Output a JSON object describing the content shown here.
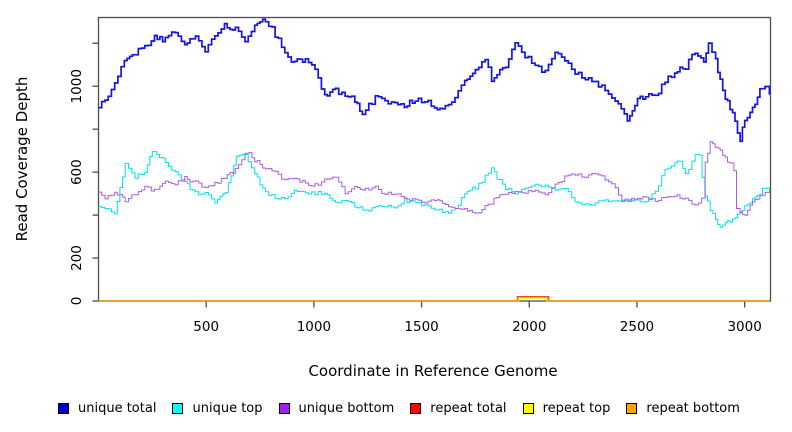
{
  "background": "#ffffff",
  "chart_data": {
    "type": "line",
    "title": "",
    "xlabel": "Coordinate in Reference Genome",
    "ylabel": "Read Coverage Depth",
    "xlim": [
      0,
      3120
    ],
    "ylim": [
      0,
      1320
    ],
    "x_ticks": [
      500,
      1000,
      1500,
      2000,
      2500,
      3000
    ],
    "y_ticks_all": [
      0,
      200,
      400,
      600,
      800,
      1000,
      1200
    ],
    "y_ticks_labeled": [
      0,
      200,
      600,
      1000
    ],
    "grid": false,
    "legend_position": "bottom",
    "axis_color": "#4d4d4d",
    "text_color": "#000000",
    "series": [
      {
        "name": "unique total",
        "color": "#1414e6",
        "legend_color": "#0000cd",
        "width": 1.7,
        "jitter": 13,
        "points": [
          [
            0,
            900
          ],
          [
            30,
            935
          ],
          [
            75,
            1005
          ],
          [
            120,
            1120
          ],
          [
            170,
            1155
          ],
          [
            215,
            1180
          ],
          [
            260,
            1225
          ],
          [
            310,
            1215
          ],
          [
            355,
            1260
          ],
          [
            400,
            1200
          ],
          [
            450,
            1228
          ],
          [
            495,
            1170
          ],
          [
            540,
            1240
          ],
          [
            585,
            1285
          ],
          [
            635,
            1270
          ],
          [
            680,
            1200
          ],
          [
            725,
            1295
          ],
          [
            775,
            1313
          ],
          [
            820,
            1240
          ],
          [
            865,
            1155
          ],
          [
            910,
            1110
          ],
          [
            960,
            1130
          ],
          [
            1005,
            1075
          ],
          [
            1050,
            950
          ],
          [
            1100,
            980
          ],
          [
            1145,
            958
          ],
          [
            1190,
            935
          ],
          [
            1225,
            875
          ],
          [
            1285,
            945
          ],
          [
            1330,
            925
          ],
          [
            1375,
            920
          ],
          [
            1420,
            912
          ],
          [
            1470,
            936
          ],
          [
            1515,
            934
          ],
          [
            1560,
            903
          ],
          [
            1610,
            905
          ],
          [
            1655,
            945
          ],
          [
            1700,
            1029
          ],
          [
            1750,
            1085
          ],
          [
            1795,
            1122
          ],
          [
            1825,
            1030
          ],
          [
            1850,
            1062
          ],
          [
            1890,
            1099
          ],
          [
            1934,
            1190
          ],
          [
            1980,
            1146
          ],
          [
            2027,
            1085
          ],
          [
            2074,
            1075
          ],
          [
            2120,
            1169
          ],
          [
            2165,
            1113
          ],
          [
            2213,
            1066
          ],
          [
            2260,
            1029
          ],
          [
            2306,
            1020
          ],
          [
            2352,
            982
          ],
          [
            2399,
            936
          ],
          [
            2455,
            845
          ],
          [
            2490,
            922
          ],
          [
            2540,
            960
          ],
          [
            2585,
            950
          ],
          [
            2630,
            1029
          ],
          [
            2675,
            1066
          ],
          [
            2725,
            1090
          ],
          [
            2770,
            1160
          ],
          [
            2810,
            1108
          ],
          [
            2832,
            1192
          ],
          [
            2865,
            1122
          ],
          [
            2886,
            1020
          ],
          [
            2910,
            950
          ],
          [
            2932,
            903
          ],
          [
            2955,
            828
          ],
          [
            2979,
            752
          ],
          [
            3000,
            842
          ],
          [
            3025,
            889
          ],
          [
            3048,
            922
          ],
          [
            3071,
            982
          ],
          [
            3095,
            991
          ],
          [
            3115,
            960
          ]
        ]
      },
      {
        "name": "unique top",
        "color": "#00e0ee",
        "legend_color": "#00ffff",
        "width": 1,
        "jitter": 9,
        "points": [
          [
            0,
            440
          ],
          [
            30,
            437
          ],
          [
            75,
            410
          ],
          [
            124,
            633
          ],
          [
            170,
            577
          ],
          [
            215,
            595
          ],
          [
            250,
            700
          ],
          [
            270,
            690
          ],
          [
            310,
            642
          ],
          [
            355,
            595
          ],
          [
            400,
            549
          ],
          [
            450,
            502
          ],
          [
            495,
            507
          ],
          [
            540,
            455
          ],
          [
            590,
            507
          ],
          [
            640,
            670
          ],
          [
            680,
            688
          ],
          [
            725,
            595
          ],
          [
            775,
            502
          ],
          [
            820,
            479
          ],
          [
            865,
            470
          ],
          [
            910,
            516
          ],
          [
            960,
            507
          ],
          [
            1005,
            502
          ],
          [
            1050,
            507
          ],
          [
            1100,
            460
          ],
          [
            1145,
            470
          ],
          [
            1190,
            446
          ],
          [
            1240,
            423
          ],
          [
            1285,
            432
          ],
          [
            1330,
            446
          ],
          [
            1375,
            437
          ],
          [
            1420,
            470
          ],
          [
            1470,
            455
          ],
          [
            1515,
            446
          ],
          [
            1560,
            432
          ],
          [
            1610,
            409
          ],
          [
            1655,
            423
          ],
          [
            1700,
            507
          ],
          [
            1750,
            530
          ],
          [
            1795,
            577
          ],
          [
            1825,
            615
          ],
          [
            1850,
            572
          ],
          [
            1890,
            525
          ],
          [
            1934,
            507
          ],
          [
            1980,
            530
          ],
          [
            2027,
            539
          ],
          [
            2074,
            530
          ],
          [
            2120,
            516
          ],
          [
            2165,
            516
          ],
          [
            2213,
            470
          ],
          [
            2260,
            446
          ],
          [
            2306,
            455
          ],
          [
            2352,
            470
          ],
          [
            2399,
            460
          ],
          [
            2455,
            470
          ],
          [
            2490,
            470
          ],
          [
            2540,
            460
          ],
          [
            2585,
            507
          ],
          [
            2630,
            609
          ],
          [
            2675,
            642
          ],
          [
            2700,
            647
          ],
          [
            2725,
            586
          ],
          [
            2770,
            688
          ],
          [
            2790,
            670
          ],
          [
            2815,
            493
          ],
          [
            2840,
            423
          ],
          [
            2865,
            376
          ],
          [
            2886,
            353
          ],
          [
            2910,
            362
          ],
          [
            2932,
            376
          ],
          [
            2955,
            390
          ],
          [
            2979,
            423
          ],
          [
            3000,
            437
          ],
          [
            3025,
            460
          ],
          [
            3048,
            483
          ],
          [
            3071,
            507
          ],
          [
            3095,
            525
          ],
          [
            3115,
            516
          ]
        ]
      },
      {
        "name": "unique bottom",
        "color": "#ab5ce6",
        "legend_color": "#a020f0",
        "width": 1,
        "jitter": 9,
        "points": [
          [
            0,
            507
          ],
          [
            30,
            483
          ],
          [
            75,
            507
          ],
          [
            124,
            470
          ],
          [
            170,
            493
          ],
          [
            215,
            530
          ],
          [
            260,
            516
          ],
          [
            310,
            553
          ],
          [
            355,
            549
          ],
          [
            400,
            572
          ],
          [
            450,
            553
          ],
          [
            495,
            530
          ],
          [
            540,
            549
          ],
          [
            585,
            572
          ],
          [
            635,
            609
          ],
          [
            680,
            679
          ],
          [
            700,
            688
          ],
          [
            725,
            656
          ],
          [
            775,
            618
          ],
          [
            820,
            595
          ],
          [
            865,
            563
          ],
          [
            910,
            572
          ],
          [
            960,
            549
          ],
          [
            1005,
            539
          ],
          [
            1050,
            563
          ],
          [
            1100,
            577
          ],
          [
            1145,
            507
          ],
          [
            1190,
            525
          ],
          [
            1240,
            516
          ],
          [
            1285,
            530
          ],
          [
            1330,
            493
          ],
          [
            1375,
            507
          ],
          [
            1420,
            479
          ],
          [
            1470,
            470
          ],
          [
            1515,
            460
          ],
          [
            1560,
            470
          ],
          [
            1610,
            455
          ],
          [
            1655,
            432
          ],
          [
            1700,
            423
          ],
          [
            1750,
            405
          ],
          [
            1795,
            437
          ],
          [
            1850,
            483
          ],
          [
            1890,
            493
          ],
          [
            1934,
            507
          ],
          [
            1980,
            502
          ],
          [
            2027,
            516
          ],
          [
            2074,
            493
          ],
          [
            2120,
            539
          ],
          [
            2165,
            577
          ],
          [
            2213,
            586
          ],
          [
            2260,
            577
          ],
          [
            2306,
            595
          ],
          [
            2352,
            563
          ],
          [
            2399,
            530
          ],
          [
            2430,
            470
          ],
          [
            2490,
            470
          ],
          [
            2540,
            483
          ],
          [
            2585,
            460
          ],
          [
            2630,
            483
          ],
          [
            2675,
            493
          ],
          [
            2725,
            470
          ],
          [
            2770,
            455
          ],
          [
            2800,
            470
          ],
          [
            2817,
            650
          ],
          [
            2840,
            735
          ],
          [
            2863,
            720
          ],
          [
            2886,
            700
          ],
          [
            2909,
            670
          ],
          [
            2932,
            640
          ],
          [
            2950,
            610
          ],
          [
            2962,
            430
          ],
          [
            2979,
            410
          ],
          [
            3002,
            398
          ],
          [
            3025,
            440
          ],
          [
            3048,
            470
          ],
          [
            3071,
            483
          ],
          [
            3095,
            500
          ],
          [
            3115,
            516
          ]
        ]
      },
      {
        "name": "repeat total",
        "color": "#ee0000",
        "legend_color": "#ff0000",
        "width": 1.2,
        "jitter": 0,
        "points": [
          [
            0,
            0
          ],
          [
            1940,
            0
          ],
          [
            1945,
            20
          ],
          [
            2085,
            20
          ],
          [
            2090,
            0
          ],
          [
            3115,
            0
          ]
        ]
      },
      {
        "name": "repeat top",
        "color": "#f5f500",
        "legend_color": "#ffff00",
        "width": 1,
        "jitter": 0,
        "points": [
          [
            0,
            0
          ],
          [
            1946,
            0
          ],
          [
            1951,
            13
          ],
          [
            2078,
            13
          ],
          [
            2083,
            0
          ],
          [
            3115,
            0
          ]
        ]
      },
      {
        "name": "repeat bottom",
        "color": "#ffa500",
        "legend_color": "#ffa500",
        "width": 1.2,
        "jitter": 0,
        "points": [
          [
            0,
            0
          ],
          [
            1942,
            0
          ],
          [
            1947,
            17
          ],
          [
            2082,
            17
          ],
          [
            2087,
            0
          ],
          [
            3115,
            0
          ]
        ]
      }
    ]
  }
}
